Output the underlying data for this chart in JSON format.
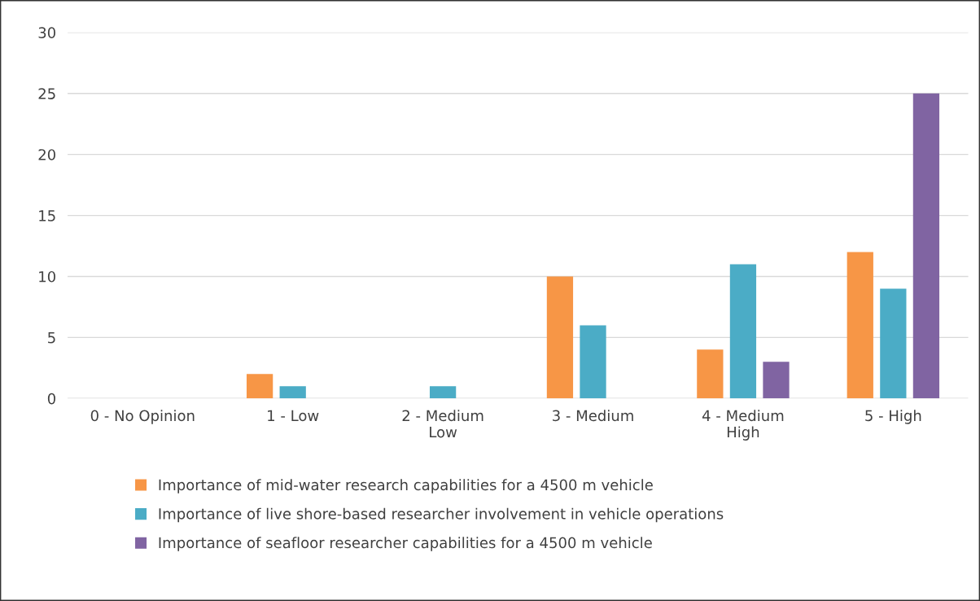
{
  "chart_data": {
    "type": "bar",
    "categories": [
      "0 - No Opinion",
      "1 - Low",
      "2 - Medium\nLow",
      "3 - Medium",
      "4 - Medium\nHigh",
      "5 - High"
    ],
    "series": [
      {
        "name": "Importance of mid-water research capabilities for a 4500 m vehicle",
        "color": "#f79646",
        "values": [
          0,
          2,
          0,
          10,
          4,
          12
        ]
      },
      {
        "name": "Importance of live shore-based researcher involvement in vehicle operations",
        "color": "#4bacc6",
        "values": [
          0,
          1,
          1,
          6,
          11,
          9
        ]
      },
      {
        "name": "Importance of seafloor researcher capabilities for a 4500 m vehicle",
        "color": "#8064a2",
        "values": [
          0,
          0,
          0,
          0,
          3,
          25
        ]
      }
    ],
    "ylim": [
      0,
      30
    ],
    "yticks": [
      0,
      5,
      10,
      15,
      20,
      25,
      30
    ],
    "grid": "y",
    "legend": "bottom"
  }
}
